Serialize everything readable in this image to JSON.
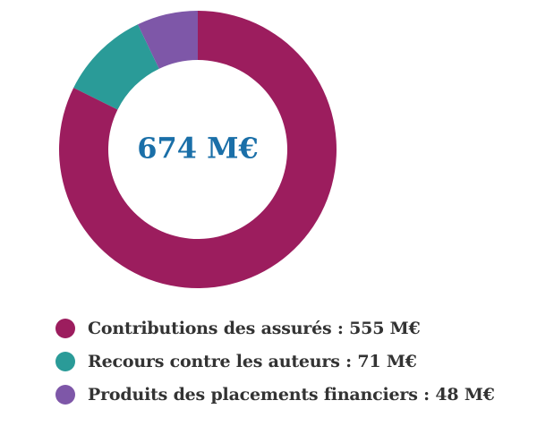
{
  "chart_data": {
    "type": "pie",
    "variant": "donut",
    "total_label": "674 M€",
    "slices": [
      {
        "name": "Contributions des assurés",
        "value": 555,
        "value_label": "555 M€",
        "color": "#9c1d5e",
        "legend_text": "Contributions des assurés : 555 M€"
      },
      {
        "name": "Recours contre les auteurs",
        "value": 71,
        "value_label": "71 M€",
        "color": "#2a9b98",
        "legend_text": "Recours contre les auteurs : 71 M€"
      },
      {
        "name": "Produits des placements financiers",
        "value": 48,
        "value_label": "48 M€",
        "color": "#7e57a8",
        "legend_text": "Produits des placements financiers : 48 M€"
      }
    ],
    "legend_position": "bottom"
  },
  "colors": {
    "total_text": "#1a6fa8",
    "legend_text": "#333333"
  }
}
